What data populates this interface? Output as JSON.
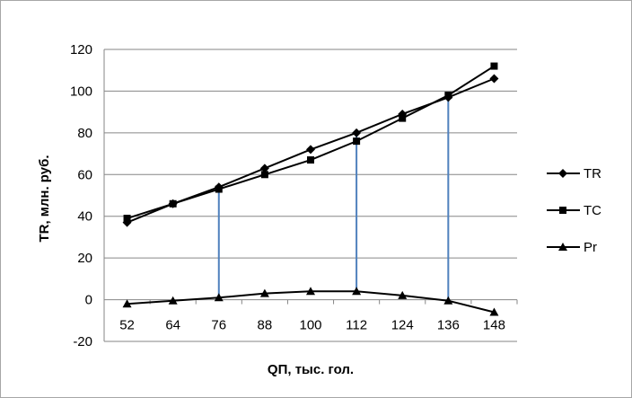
{
  "chart_data": {
    "type": "line",
    "xlabel": "QП, тыс. гол.",
    "ylabel": "TR, млн. руб.",
    "categories": [
      "52",
      "64",
      "76",
      "88",
      "100",
      "112",
      "124",
      "136",
      "148"
    ],
    "ylim": [
      -20,
      120
    ],
    "yticks": [
      -20,
      0,
      20,
      40,
      60,
      80,
      100,
      120
    ],
    "grid": "horizontal",
    "legend": "right",
    "series": [
      {
        "name": "TR",
        "marker": "diamond",
        "values": [
          37,
          46,
          54,
          63,
          72,
          80,
          89,
          97,
          106
        ]
      },
      {
        "name": "TC",
        "marker": "square",
        "values": [
          39,
          46,
          53,
          60,
          67,
          76,
          87,
          98,
          112
        ]
      },
      {
        "name": "Pr",
        "marker": "triangle",
        "values": [
          -2,
          -0.5,
          1,
          3,
          4,
          4,
          2,
          -0.5,
          -6
        ]
      }
    ],
    "drop_lines": {
      "color": "#4f81bd",
      "categories": [
        "76",
        "112",
        "136"
      ]
    }
  }
}
